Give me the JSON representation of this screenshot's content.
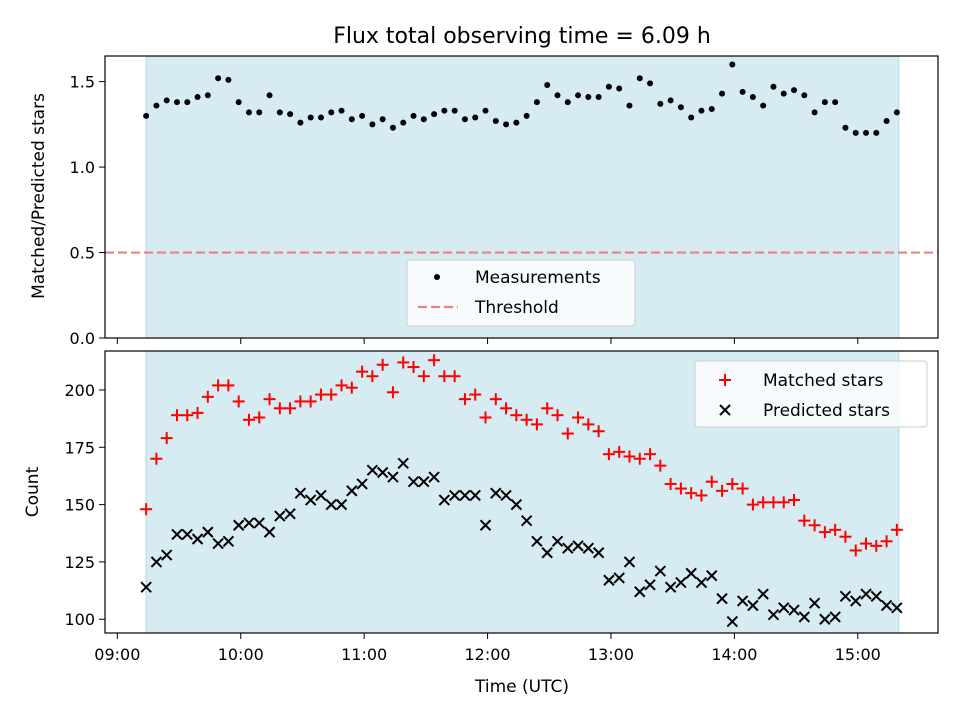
{
  "title": "Flux total observing time = 6.09 h",
  "chart_data": [
    {
      "type": "scatter",
      "ylabel": "Matched/Predicted stars",
      "ylim": [
        0,
        1.65
      ],
      "yticks": [
        0.0,
        0.5,
        1.0,
        1.5
      ],
      "ytick_labels": [
        "0.0",
        "0.5",
        "1.0",
        "1.5"
      ],
      "observing_window": [
        "09:14",
        "15:20"
      ],
      "threshold": 0.5,
      "legend": [
        "Measurements",
        "Threshold"
      ],
      "legend_position": "lower-center",
      "x": [
        "09:14",
        "09:19",
        "09:24",
        "09:29",
        "09:34",
        "09:39",
        "09:44",
        "09:49",
        "09:54",
        "09:59",
        "10:04",
        "10:09",
        "10:14",
        "10:19",
        "10:24",
        "10:29",
        "10:34",
        "10:39",
        "10:44",
        "10:49",
        "10:54",
        "10:59",
        "11:04",
        "11:09",
        "11:14",
        "11:19",
        "11:24",
        "11:29",
        "11:34",
        "11:39",
        "11:44",
        "11:49",
        "11:54",
        "11:59",
        "12:04",
        "12:09",
        "12:14",
        "12:19",
        "12:24",
        "12:29",
        "12:34",
        "12:39",
        "12:44",
        "12:49",
        "12:54",
        "12:59",
        "13:04",
        "13:09",
        "13:14",
        "13:19",
        "13:24",
        "13:29",
        "13:34",
        "13:39",
        "13:44",
        "13:49",
        "13:54",
        "13:59",
        "14:04",
        "14:09",
        "14:14",
        "14:19",
        "14:24",
        "14:29",
        "14:34",
        "14:39",
        "14:44",
        "14:49",
        "14:54",
        "14:59",
        "15:04",
        "15:09",
        "15:14",
        "15:19"
      ],
      "series": [
        {
          "name": "Measurements",
          "marker": "dot",
          "values": [
            1.3,
            1.36,
            1.39,
            1.38,
            1.38,
            1.41,
            1.42,
            1.52,
            1.51,
            1.38,
            1.32,
            1.32,
            1.42,
            1.32,
            1.31,
            1.26,
            1.29,
            1.29,
            1.32,
            1.33,
            1.28,
            1.3,
            1.25,
            1.28,
            1.23,
            1.26,
            1.3,
            1.28,
            1.31,
            1.33,
            1.33,
            1.28,
            1.29,
            1.33,
            1.27,
            1.25,
            1.26,
            1.3,
            1.38,
            1.48,
            1.42,
            1.38,
            1.42,
            1.41,
            1.41,
            1.47,
            1.46,
            1.36,
            1.52,
            1.49,
            1.37,
            1.39,
            1.35,
            1.29,
            1.33,
            1.34,
            1.43,
            1.6,
            1.44,
            1.41,
            1.36,
            1.47,
            1.43,
            1.45,
            1.42,
            1.32,
            1.38,
            1.38,
            1.23,
            1.2,
            1.2,
            1.2,
            1.27,
            1.32
          ]
        }
      ]
    },
    {
      "type": "scatter",
      "xlabel": "Time (UTC)",
      "ylabel": "Count",
      "ylim": [
        94,
        217
      ],
      "yticks": [
        100,
        125,
        150,
        175,
        200
      ],
      "xticks": [
        "09:00",
        "10:00",
        "11:00",
        "12:00",
        "13:00",
        "14:00",
        "15:00"
      ],
      "xlim": [
        "08:54",
        "15:39"
      ],
      "observing_window": [
        "09:14",
        "15:20"
      ],
      "legend_position": "top-right",
      "x": [
        "09:14",
        "09:19",
        "09:24",
        "09:29",
        "09:34",
        "09:39",
        "09:44",
        "09:49",
        "09:54",
        "09:59",
        "10:04",
        "10:09",
        "10:14",
        "10:19",
        "10:24",
        "10:29",
        "10:34",
        "10:39",
        "10:44",
        "10:49",
        "10:54",
        "10:59",
        "11:04",
        "11:09",
        "11:14",
        "11:19",
        "11:24",
        "11:29",
        "11:34",
        "11:39",
        "11:44",
        "11:49",
        "11:54",
        "11:59",
        "12:04",
        "12:09",
        "12:14",
        "12:19",
        "12:24",
        "12:29",
        "12:34",
        "12:39",
        "12:44",
        "12:49",
        "12:54",
        "12:59",
        "13:04",
        "13:09",
        "13:14",
        "13:19",
        "13:24",
        "13:29",
        "13:34",
        "13:39",
        "13:44",
        "13:49",
        "13:54",
        "13:59",
        "14:04",
        "14:09",
        "14:14",
        "14:19",
        "14:24",
        "14:29",
        "14:34",
        "14:39",
        "14:44",
        "14:49",
        "14:54",
        "14:59",
        "15:04",
        "15:09",
        "15:14",
        "15:19"
      ],
      "series": [
        {
          "name": "Matched stars",
          "marker": "plus",
          "color": "#ff0000",
          "values": [
            148,
            170,
            179,
            189,
            189,
            190,
            197,
            202,
            202,
            195,
            187,
            188,
            196,
            192,
            192,
            195,
            195,
            198,
            198,
            202,
            201,
            208,
            206,
            211,
            199,
            212,
            210,
            206,
            213,
            206,
            206,
            196,
            198,
            188,
            196,
            192,
            189,
            187,
            185,
            192,
            189,
            181,
            188,
            185,
            182,
            172,
            173,
            171,
            170,
            172,
            167,
            159,
            157,
            155,
            154,
            160,
            156,
            159,
            157,
            150,
            151,
            151,
            151,
            152,
            143,
            141,
            138,
            139,
            136,
            130,
            133,
            132,
            134,
            139
          ]
        },
        {
          "name": "Predicted stars",
          "marker": "x",
          "color": "#000000",
          "values": [
            114,
            125,
            128,
            137,
            137,
            135,
            138,
            133,
            134,
            141,
            142,
            142,
            138,
            145,
            146,
            155,
            152,
            154,
            150,
            150,
            156,
            159,
            165,
            164,
            162,
            168,
            160,
            160,
            162,
            152,
            154,
            154,
            154,
            141,
            155,
            154,
            150,
            143,
            134,
            129,
            134,
            131,
            132,
            131,
            129,
            117,
            118,
            125,
            112,
            115,
            121,
            114,
            116,
            120,
            116,
            119,
            109,
            99,
            108,
            106,
            111,
            102,
            105,
            104,
            101,
            107,
            100,
            101,
            110,
            108,
            111,
            110,
            106,
            105
          ]
        }
      ]
    }
  ]
}
